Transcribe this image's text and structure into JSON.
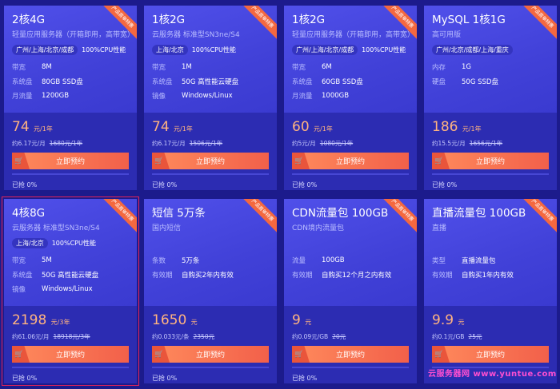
{
  "ribbon": "产品首单特惠",
  "button_label": "立即预约",
  "watermark": "云服务器网 www.yuntue.com",
  "colors": {
    "background": "#1c1b8c",
    "card": "#4545dc",
    "price": "#ffb380",
    "button": "#f2604a"
  },
  "cards": [
    {
      "title": "2核4G",
      "sub": "轻量应用服务器（开箱即用，高带宽）",
      "tags": [
        "广州/上海/北京/成都",
        "100%CPU性能"
      ],
      "specs": [
        [
          "带宽",
          "8M"
        ],
        [
          "系统盘",
          "80GB SSD盘"
        ],
        [
          "月流量",
          "1200GB"
        ]
      ],
      "price": "74",
      "unit": "元/1年",
      "per": "约6.17元/月",
      "orig": "1680元/1年",
      "sold": "已抢 0%"
    },
    {
      "title": "1核2G",
      "sub": "云服务器 标准型SN3ne/S4",
      "tags": [
        "上海/北京",
        "100%CPU性能"
      ],
      "specs": [
        [
          "带宽",
          "1M"
        ],
        [
          "系统盘",
          "50G 高性能云硬盘"
        ],
        [
          "镜像",
          "Windows/Linux"
        ]
      ],
      "price": "74",
      "unit": "元/1年",
      "per": "约6.17元/月",
      "orig": "1506元/1年",
      "sold": "已抢 0%"
    },
    {
      "title": "1核2G",
      "sub": "轻量应用服务器（开箱即用，高带宽）",
      "tags": [
        "广州/上海/北京/成都",
        "100%CPU性能"
      ],
      "specs": [
        [
          "带宽",
          "6M"
        ],
        [
          "系统盘",
          "60GB SSD盘"
        ],
        [
          "月流量",
          "1000GB"
        ]
      ],
      "price": "60",
      "unit": "元/1年",
      "per": "约5元/月",
      "orig": "1080元/1年",
      "sold": "已抢 0%"
    },
    {
      "title": "MySQL 1核1G",
      "sub": "高可用版",
      "tags": [
        "广州/北京/成都/上海/重庆"
      ],
      "specs": [
        [
          "内存",
          "1G"
        ],
        [
          "硬盘",
          "50G SSD盘"
        ]
      ],
      "price": "186",
      "unit": "元/1年",
      "per": "约15.5元/月",
      "orig": "1656元/1年",
      "sold": "已抢 0%"
    },
    {
      "title": "4核8G",
      "sub": "云服务器 标准型SN3ne/S4",
      "tags": [
        "上海/北京",
        "100%CPU性能"
      ],
      "specs": [
        [
          "带宽",
          "5M"
        ],
        [
          "系统盘",
          "50G 高性能云硬盘"
        ],
        [
          "镜像",
          "Windows/Linux"
        ]
      ],
      "price": "2198",
      "unit": "元/3年",
      "per": "约61.06元/月",
      "orig": "18918元/3年",
      "sold": "已抢 0%",
      "selected": true
    },
    {
      "title": "短信 5万条",
      "sub": "国内短信",
      "tags": [],
      "specs": [
        [
          "条数",
          "5万条"
        ],
        [
          "有效期",
          "自购买2年内有效"
        ]
      ],
      "price": "1650",
      "unit": "元",
      "per": "约0.033元/条",
      "orig": "2350元",
      "sold": "已抢 0%"
    },
    {
      "title": "CDN流量包 100GB",
      "sub": "CDN境内流量包",
      "tags": [],
      "specs": [
        [
          "流量",
          "100GB"
        ],
        [
          "有效期",
          "自购买12个月之内有效"
        ]
      ],
      "price": "9",
      "unit": "元",
      "per": "约0.09元/GB",
      "orig": "20元",
      "sold": "已抢 0%"
    },
    {
      "title": "直播流量包 100GB",
      "sub": "直播",
      "tags": [],
      "specs": [
        [
          "类型",
          "直播流量包"
        ],
        [
          "有效期",
          "自购买1年内有效"
        ]
      ],
      "price": "9.9",
      "unit": "元",
      "per": "约0.1元/GB",
      "orig": "25元",
      "sold": ""
    }
  ]
}
